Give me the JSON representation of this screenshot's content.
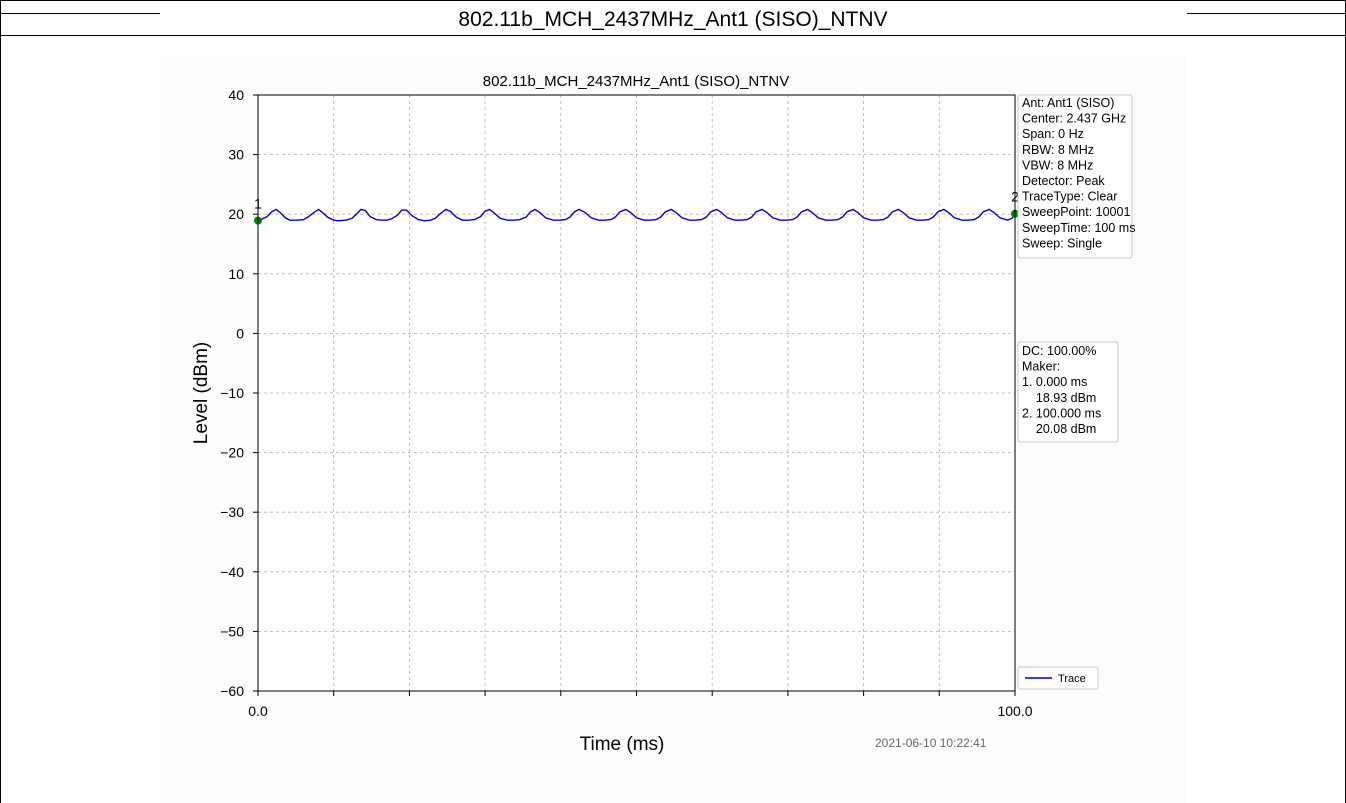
{
  "header": {
    "title": "802.11b_MCH_2437MHz_Ant1 (SISO)_NTNV"
  },
  "timestamp": "2021-06-10 10:22:41",
  "info_box": {
    "lines": [
      "Ant: Ant1 (SISO)",
      "Center: 2.437 GHz",
      "Span: 0 Hz",
      "RBW: 8 MHz",
      "VBW: 8 MHz",
      "Detector: Peak",
      "TraceType: Clear",
      "SweepPoint: 10001",
      "SweepTime: 100 ms",
      "Sweep: Single"
    ]
  },
  "marker_box": {
    "lines": [
      "DC: 100.00%",
      "Maker:",
      "1. 0.000 ms",
      "    18.93 dBm",
      "2. 100.000 ms",
      "    20.08 dBm"
    ]
  },
  "chart_data": {
    "type": "line",
    "title": "802.11b_MCH_2437MHz_Ant1 (SISO)_NTNV",
    "xlabel": "Time (ms)",
    "ylabel": "Level (dBm)",
    "xlim": [
      0,
      100
    ],
    "ylim": [
      -60,
      40
    ],
    "x_tick_labels": [
      "0.0",
      "100.0"
    ],
    "x_ticks": [
      0,
      10,
      20,
      30,
      40,
      50,
      60,
      70,
      80,
      90,
      100
    ],
    "y_ticks": [
      40,
      30,
      20,
      10,
      0,
      -10,
      -20,
      -30,
      -40,
      -50,
      -60
    ],
    "y_tick_labels": [
      "40",
      "30",
      "20",
      "10",
      "0",
      "−10",
      "−20",
      "−30",
      "−40",
      "−50",
      "−60"
    ],
    "grid": true,
    "legend": {
      "position": "bottom-right",
      "entries": [
        "Trace"
      ]
    },
    "series": [
      {
        "name": "Trace",
        "color": "#0000cc",
        "x": [
          0,
          0.4,
          1.2,
          1.8,
          2.4,
          3.0,
          3.6,
          4.2,
          5.2,
          6.0,
          6.6,
          7.4,
          8.0,
          8.4,
          9.2,
          10.0,
          10.6,
          11.6,
          12.4,
          13.0,
          13.6,
          14.2,
          14.8,
          15.6,
          16.4,
          17.0,
          17.6,
          18.4,
          19.0,
          19.6,
          20.4,
          21.2,
          22.0,
          22.8,
          23.4,
          24.0,
          24.8,
          25.4,
          26.2,
          27.0,
          27.8,
          28.6,
          29.4,
          30.0,
          30.6,
          31.2,
          32.0,
          33.0,
          33.8,
          34.6,
          35.4,
          36.0,
          36.6,
          37.2,
          38.0,
          39.0,
          39.8,
          40.6,
          41.2,
          41.8,
          42.4,
          43.2,
          44.0,
          45.0,
          45.8,
          46.6,
          47.2,
          47.8,
          48.6,
          49.2,
          50.0,
          51.0,
          51.8,
          52.6,
          53.2,
          53.8,
          54.6,
          55.2,
          56.0,
          57.0,
          57.8,
          58.6,
          59.2,
          59.8,
          60.6,
          61.2,
          62.0,
          63.0,
          63.8,
          64.6,
          65.2,
          65.8,
          66.6,
          67.2,
          68.0,
          69.0,
          69.8,
          70.6,
          71.2,
          71.8,
          72.6,
          73.2,
          74.0,
          75.0,
          75.8,
          76.6,
          77.2,
          77.8,
          78.6,
          79.2,
          80.0,
          81.0,
          81.8,
          82.6,
          83.2,
          83.8,
          84.6,
          85.2,
          86.0,
          87.0,
          87.8,
          88.6,
          89.2,
          89.8,
          90.6,
          91.2,
          92.0,
          93.0,
          93.8,
          94.6,
          95.2,
          95.8,
          96.6,
          97.2,
          98.0,
          99.0,
          99.6,
          100.0
        ],
        "y": [
          18.93,
          19.1,
          19.6,
          20.4,
          20.8,
          20.2,
          19.4,
          19.0,
          19.0,
          19.1,
          19.5,
          20.3,
          20.8,
          20.4,
          19.5,
          19.0,
          18.9,
          19.0,
          19.3,
          20.0,
          20.8,
          20.6,
          19.6,
          19.1,
          19.0,
          19.0,
          19.2,
          19.8,
          20.7,
          20.7,
          19.7,
          19.1,
          18.9,
          19.0,
          19.3,
          20.0,
          20.8,
          20.5,
          19.5,
          19.0,
          19.0,
          19.1,
          19.6,
          20.5,
          20.8,
          20.2,
          19.3,
          19.0,
          19.0,
          19.1,
          19.5,
          20.4,
          20.8,
          20.3,
          19.4,
          19.0,
          19.0,
          19.1,
          19.5,
          20.4,
          20.8,
          20.3,
          19.4,
          19.0,
          19.0,
          19.1,
          19.5,
          20.4,
          20.8,
          20.3,
          19.4,
          19.0,
          19.0,
          19.1,
          19.5,
          20.4,
          20.8,
          20.3,
          19.4,
          19.0,
          19.0,
          19.1,
          19.5,
          20.4,
          20.8,
          20.3,
          19.4,
          19.0,
          19.0,
          19.1,
          19.5,
          20.4,
          20.8,
          20.3,
          19.4,
          19.0,
          19.0,
          19.1,
          19.5,
          20.4,
          20.8,
          20.3,
          19.4,
          19.0,
          19.0,
          19.1,
          19.5,
          20.4,
          20.8,
          20.3,
          19.4,
          19.0,
          19.0,
          19.1,
          19.5,
          20.4,
          20.8,
          20.3,
          19.4,
          19.0,
          19.0,
          19.1,
          19.5,
          20.4,
          20.8,
          20.3,
          19.4,
          19.0,
          19.0,
          19.1,
          19.5,
          20.4,
          20.8,
          20.3,
          19.4,
          19.0,
          19.3,
          20.08
        ]
      }
    ],
    "markers": [
      {
        "label": "1",
        "x": 0.0,
        "y": 18.93,
        "color": "#008000"
      },
      {
        "label": "2",
        "x": 100.0,
        "y": 20.08,
        "color": "#008000"
      }
    ]
  }
}
